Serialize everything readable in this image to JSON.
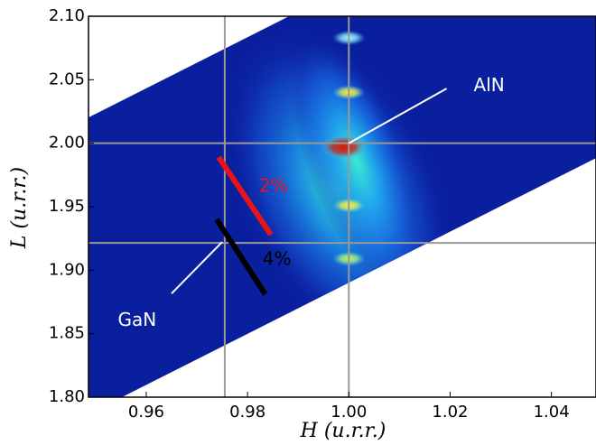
{
  "chart_data": {
    "type": "map",
    "x_label": "H (u.r.r.)",
    "y_label": "L (u.r.r.)",
    "xlim": [
      0.9486,
      1.0488
    ],
    "ylim": [
      1.8,
      2.1
    ],
    "xticks": [
      0.96,
      0.98,
      {
        "value": 1,
        "label": "1.00"
      },
      1.02,
      1.04
    ],
    "yticks": [
      {
        "value": 1.8,
        "label": "1.80"
      },
      1.85,
      {
        "value": 1.9,
        "label": "1.90"
      },
      1.95,
      {
        "value": 2,
        "label": "2.00"
      },
      2.05,
      {
        "value": 2.1,
        "label": "2.10"
      }
    ],
    "map_outline": {
      "h": [
        0.9486,
        0.9882,
        1.0488,
        1.0488,
        0.9552,
        0.9486
      ],
      "l": [
        2.0203,
        2.1,
        2.1,
        1.9883,
        1.8,
        1.8
      ],
      "color": "#0a1f9e"
    },
    "peaks": {
      "h": [
        1.0,
        1.0,
        0.999,
        1.0,
        1.0
      ],
      "l": [
        2.083,
        2.04,
        1.997,
        1.951,
        1.909
      ],
      "colors": [
        "#9ff8ff",
        "#f2f24a",
        "#d81a0a",
        "#f2f24a",
        "#b8f86a"
      ]
    },
    "reference_lines": {
      "h": [
        0.9755,
        1.0
      ],
      "l": [
        2.0,
        1.9215
      ],
      "color": "#999999"
    },
    "strain_lines": [
      {
        "name": "2%",
        "color": "#e8141a",
        "h": [
          0.9743,
          0.9846
        ],
        "l": [
          1.989,
          1.928
        ],
        "label_h": 0.9851,
        "label_l": 1.9656
      },
      {
        "name": "4%",
        "color": "#000000",
        "h": [
          0.9739,
          0.9835
        ],
        "l": [
          1.94,
          1.881
        ],
        "label_h": 0.9858,
        "label_l": 1.908
      }
    ],
    "annotations": [
      {
        "text": "AlN",
        "h": 1.0277,
        "l": 2.045,
        "color": "#ffffff",
        "pointer_h": [
          1.0,
          1.0193
        ],
        "pointer_l": [
          2.0,
          2.043
        ]
      },
      {
        "text": "GaN",
        "h": 0.9582,
        "l": 1.86,
        "color": "#ffffff",
        "pointer_h": [
          0.965,
          0.975
        ],
        "pointer_l": [
          1.8816,
          1.9222
        ]
      }
    ]
  }
}
